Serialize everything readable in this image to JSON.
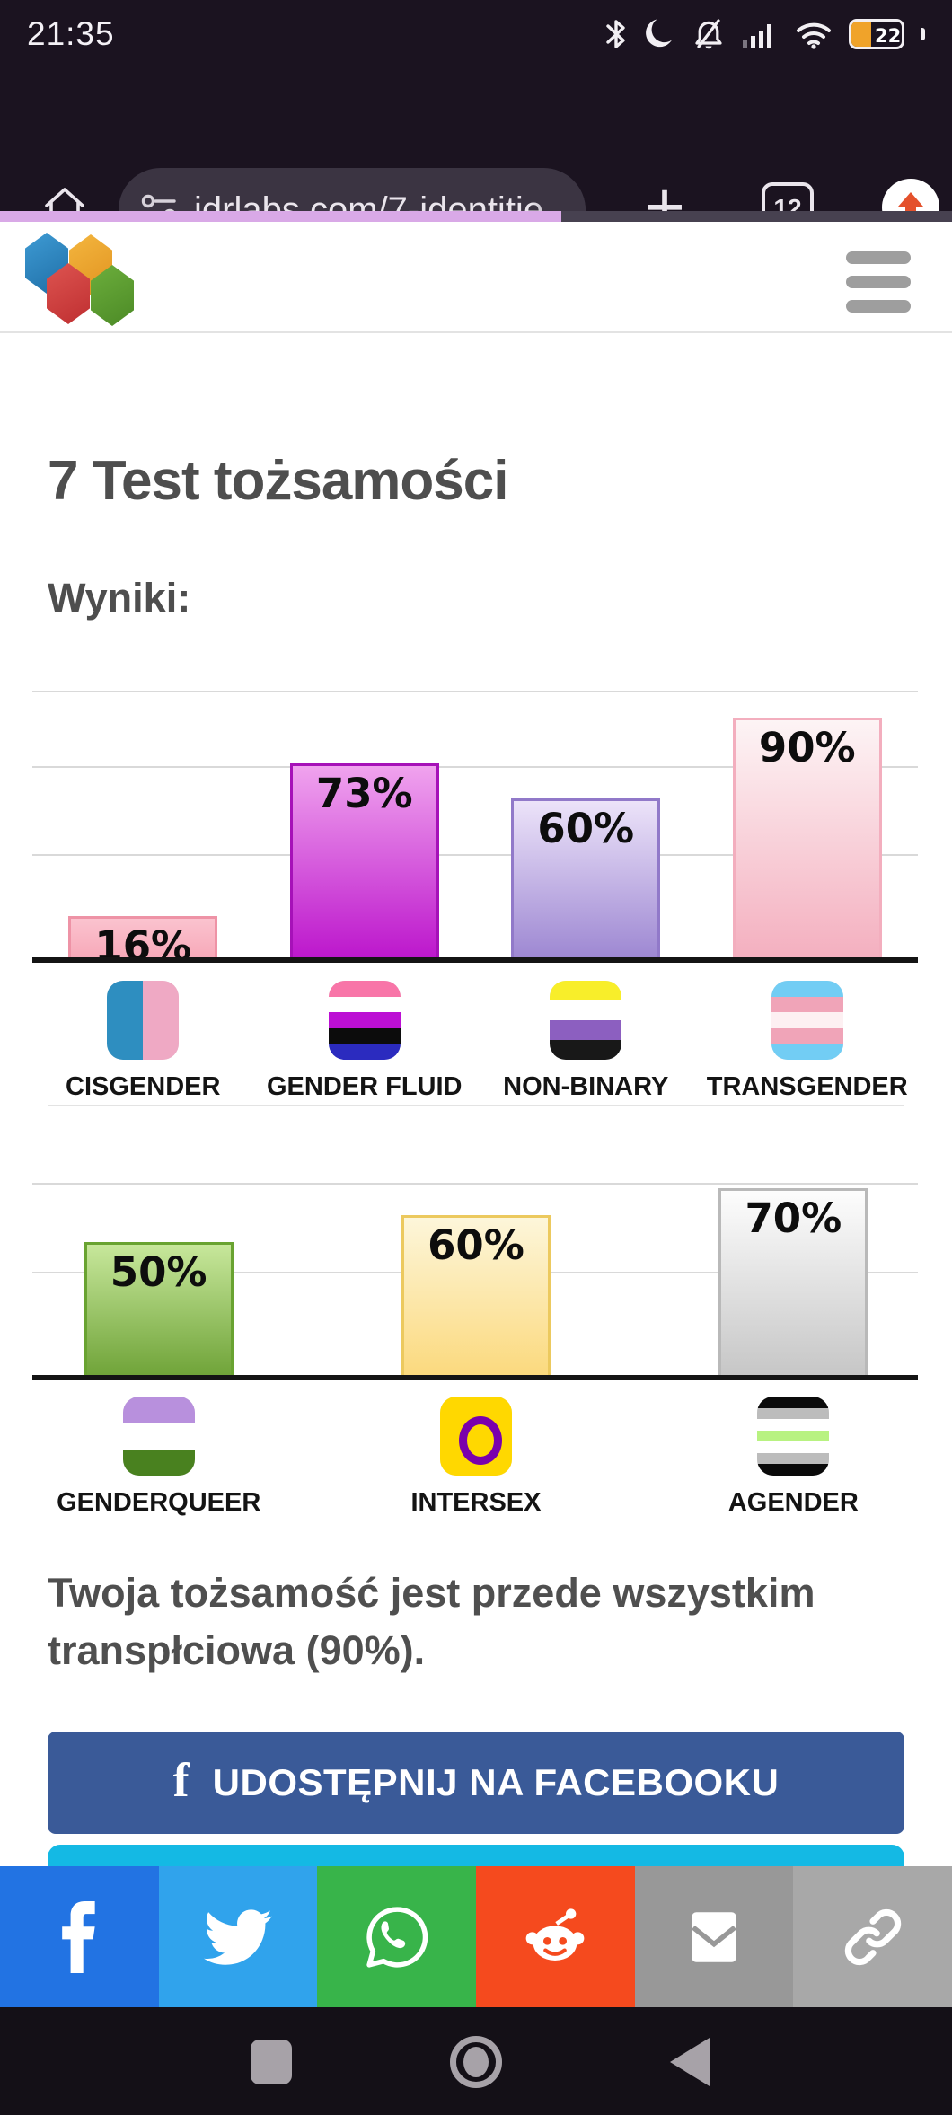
{
  "status_bar": {
    "time": "21:35",
    "battery_percent": "22"
  },
  "toolbar": {
    "url": "idrlabs.com/7-identitie",
    "tab_count": "12",
    "progress_percent": 59
  },
  "content": {
    "title": "7 Test tożsamości",
    "results_heading": "Wyniki:",
    "result_text": "Twoja tożsamość jest przede wszystkim transpłciowa (90%).",
    "facebook_button_label": "UDOSTĘPNIJ NA FACEBOOKU",
    "facebook_f": "f"
  },
  "chart_data": {
    "type": "bar",
    "unit": "%",
    "ylim": [
      0,
      100
    ],
    "grid": "horizontal",
    "rows": [
      {
        "categories": [
          "CISGENDER",
          "GENDER FLUID",
          "NON-BINARY",
          "TRANSGENDER"
        ],
        "values": [
          16,
          73,
          60,
          90
        ],
        "bars": [
          {
            "label": "CISGENDER",
            "value": 16,
            "value_label": "16%",
            "fill_top": "#fbc3cf",
            "fill_bottom": "#f7a8b8",
            "border": "#ee93a6",
            "flag": {
              "dir": "v",
              "stripes": [
                "#2e8ec0",
                "#efa9c4"
              ]
            }
          },
          {
            "label": "GENDER FLUID",
            "value": 73,
            "value_label": "73%",
            "fill_top": "#f0a3ee",
            "fill_bottom": "#bc16cc",
            "border": "#a611b8",
            "flag": {
              "dir": "h",
              "stripes": [
                "#f875a8",
                "#ffffff",
                "#bc0fd4",
                "#0c0c0c",
                "#2b2bbf"
              ]
            }
          },
          {
            "label": "NON-BINARY",
            "value": 60,
            "value_label": "60%",
            "fill_top": "#ece3f9",
            "fill_bottom": "#9d87d2",
            "border": "#9179c9",
            "flag": {
              "dir": "h",
              "stripes": [
                "#f8ee2a",
                "#ffffff",
                "#8c5fc0",
                "#181818"
              ]
            }
          },
          {
            "label": "TRANSGENDER",
            "value": 90,
            "value_label": "90%",
            "fill_top": "#fdf4f5",
            "fill_bottom": "#f4afbf",
            "border": "#f3aebe",
            "flag": {
              "dir": "h",
              "stripes": [
                "#72cdf4",
                "#f0a4b8",
                "#fdf0f2",
                "#f0a4b8",
                "#72cdf4"
              ]
            }
          }
        ]
      },
      {
        "categories": [
          "GENDERQUEER",
          "INTERSEX",
          "AGENDER"
        ],
        "values": [
          50,
          60,
          70
        ],
        "bars": [
          {
            "label": "GENDERQUEER",
            "value": 50,
            "value_label": "50%",
            "fill_top": "#c7e79b",
            "fill_bottom": "#6fa338",
            "border": "#69a331",
            "flag": {
              "dir": "h",
              "stripes": [
                "#b890dd",
                "#ffffff",
                "#49811f"
              ]
            }
          },
          {
            "label": "INTERSEX",
            "value": 60,
            "value_label": "60%",
            "fill_top": "#fdf6da",
            "fill_bottom": "#fbd97d",
            "border": "#ecc95e",
            "flag": {
              "dir": "h",
              "stripes": [
                "#ffd800"
              ],
              "ring": "#7a00ac"
            }
          },
          {
            "label": "AGENDER",
            "value": 70,
            "value_label": "70%",
            "fill_top": "#fdfdfd",
            "fill_bottom": "#c6c6c6",
            "border": "#b9b9b9",
            "flag": {
              "dir": "h",
              "stripes": [
                "#0a0a0a",
                "#bcbcbc",
                "#ffffff",
                "#b8f281",
                "#ffffff",
                "#bcbcbc",
                "#0a0a0a"
              ]
            }
          }
        ]
      }
    ]
  },
  "share_bar": {
    "services": [
      "facebook",
      "twitter",
      "whatsapp",
      "reddit",
      "email",
      "copy-link"
    ],
    "colors": {
      "facebook": "#2273e3",
      "twitter": "#30a3ec",
      "whatsapp": "#38b44a",
      "reddit": "#f54a1e",
      "email": "#989898",
      "copy_link": "#a8a8a8"
    }
  }
}
